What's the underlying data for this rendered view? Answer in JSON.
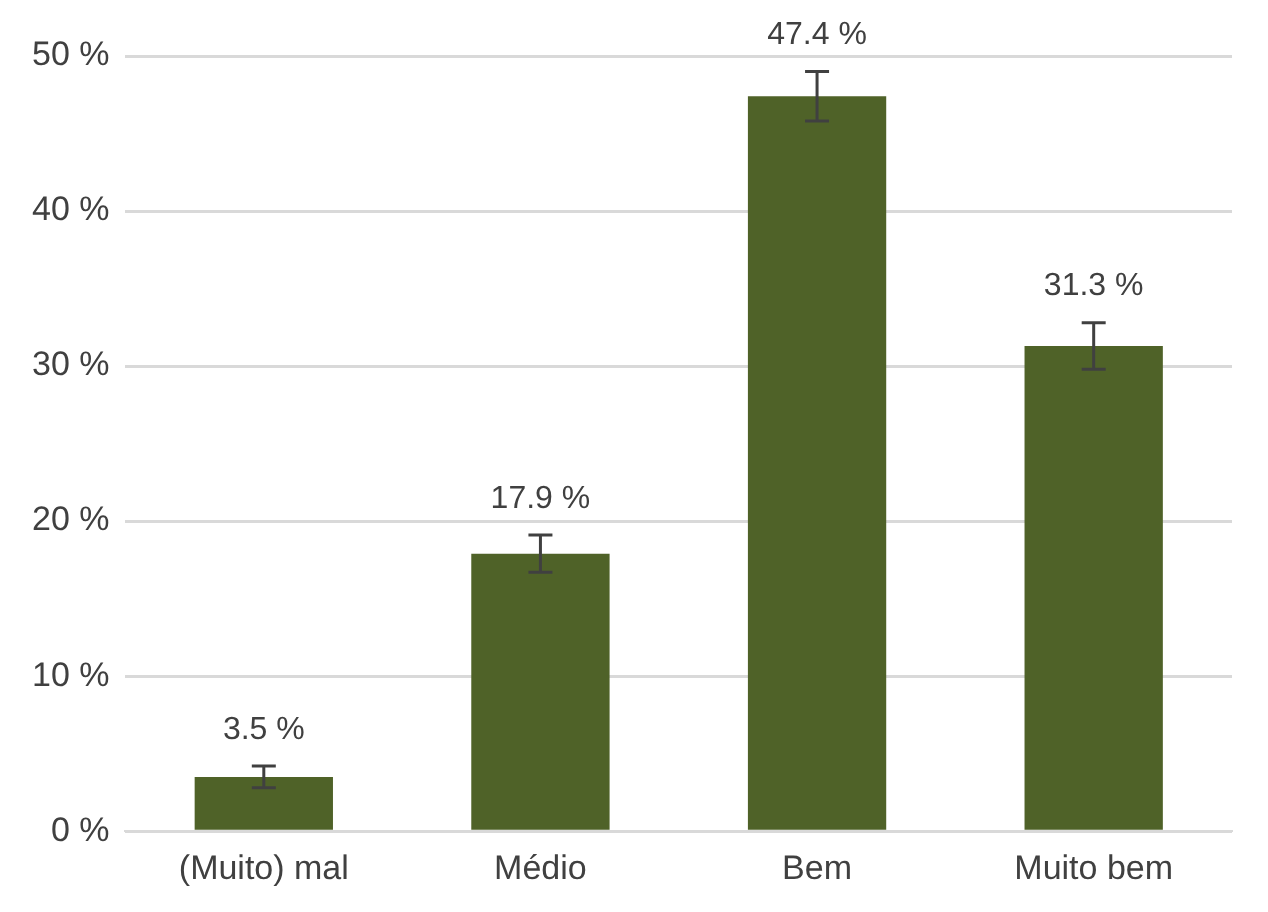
{
  "chart_data": {
    "type": "bar",
    "categories": [
      "(Muito) mal",
      "Médio",
      "Bem",
      "Muito bem"
    ],
    "values": [
      3.5,
      17.9,
      47.4,
      31.3
    ],
    "errors": [
      0.7,
      1.2,
      1.6,
      1.5
    ],
    "value_labels": [
      "3.5 %",
      "17.9 %",
      "47.4 %",
      "31.3 %"
    ],
    "color": "#4f6228",
    "ylim": [
      0,
      50
    ],
    "yticks": [
      {
        "value": 0,
        "label": "0 %"
      },
      {
        "value": 10,
        "label": "10 %"
      },
      {
        "value": 20,
        "label": "20 %"
      },
      {
        "value": 30,
        "label": "30 %"
      },
      {
        "value": 40,
        "label": "40 %"
      },
      {
        "value": 50,
        "label": "50 %"
      }
    ],
    "grid": "y",
    "legend": false
  }
}
